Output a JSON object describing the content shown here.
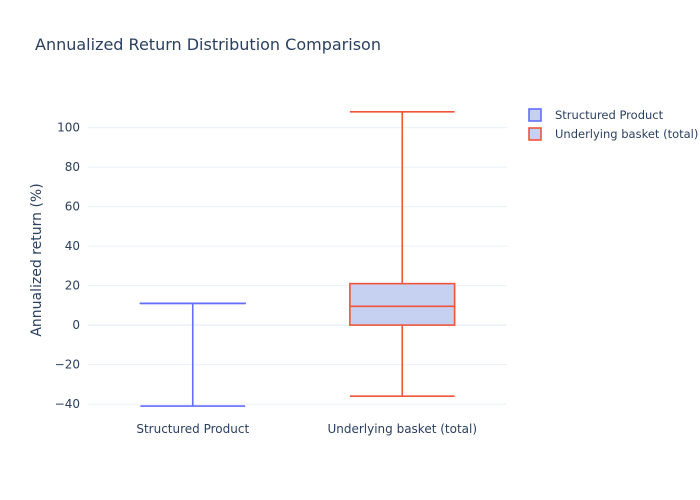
{
  "chart_data": {
    "type": "box",
    "title": "Annualized Return Distribution Comparison",
    "xlabel": "",
    "ylabel": "Annualized return (%)",
    "ylim": [
      -43,
      114
    ],
    "yticks": [
      -40,
      -20,
      0,
      20,
      40,
      60,
      80,
      100
    ],
    "grid": true,
    "legend_position": "top-right",
    "categories": [
      "Structured Product",
      "Underlying basket (total)"
    ],
    "series": [
      {
        "name": "Structured Product",
        "color": "#636efa",
        "fill": "#c6d0f0",
        "min": -41,
        "q1": 11,
        "median": 11,
        "q3": 11,
        "max": 11
      },
      {
        "name": "Underlying basket (total)",
        "color": "#ef553b",
        "fill": "#c6d0f0",
        "min": -36,
        "q1": 0,
        "median": 9.5,
        "q3": 21,
        "max": 108
      }
    ]
  }
}
